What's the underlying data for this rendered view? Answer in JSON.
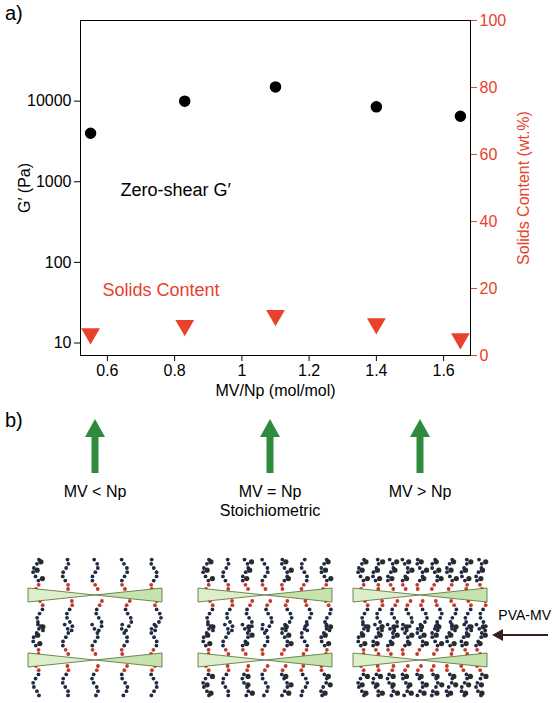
{
  "chart_data": {
    "type": "scatter",
    "panel": "a)",
    "x": [
      0.55,
      0.83,
      1.1,
      1.4,
      1.65
    ],
    "xlabel": "MV/Np (mol/mol)",
    "ylabel": "G′ (Pa)",
    "y2label": "Solids Content (wt.%)",
    "log": "y",
    "xlim": [
      0.52,
      1.68
    ],
    "xticks": [
      0.6,
      0.8,
      1,
      1.2,
      1.4,
      1.6
    ],
    "ylim": [
      7,
      100000
    ],
    "yticks": [
      10,
      100,
      1000,
      10000
    ],
    "y2lim": [
      0,
      100
    ],
    "y2ticks": [
      0,
      20,
      40,
      60,
      80,
      100
    ],
    "series": [
      {
        "name": "Zero-shear G′",
        "color": "#000000",
        "marker": "circle",
        "values": [
          4000,
          10000,
          15000,
          8500,
          6500
        ]
      },
      {
        "name": "Solids Content",
        "color": "#e8412c",
        "marker": "triangle-down",
        "axis": "y2",
        "values": [
          6.5,
          9,
          12,
          9.5,
          5
        ]
      }
    ]
  },
  "diagram": {
    "panel": "b)",
    "arrows": [
      {
        "label": [
          "MV < Np"
        ]
      },
      {
        "label": [
          "MV = Np",
          "Stoichiometric"
        ]
      },
      {
        "label": [
          "MV > Np"
        ]
      }
    ],
    "callout": "PVA-MV"
  }
}
